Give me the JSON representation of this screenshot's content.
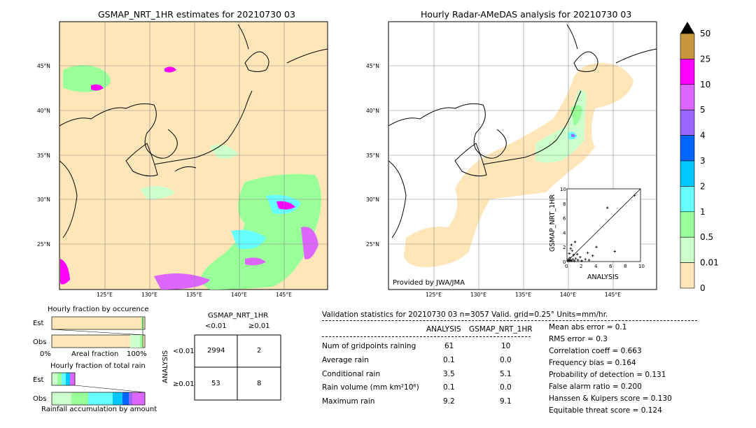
{
  "left_map": {
    "title": "GSMAP_NRT_1HR estimates for 20210730 03",
    "lat_labels": [
      "45°N",
      "40°N",
      "35°N",
      "30°N",
      "25°N"
    ],
    "lon_labels": [
      "125°E",
      "130°E",
      "135°E",
      "140°E",
      "145°E"
    ]
  },
  "right_map": {
    "title": "Hourly Radar-AMeDAS analysis for 20210730 03",
    "lat_labels": [
      "45°N",
      "40°N",
      "35°N",
      "30°N",
      "25°N"
    ],
    "lon_labels": [
      "125°E",
      "130°E",
      "135°E",
      "140°E",
      "145°E"
    ],
    "credit": "Provided by JWA/JMA"
  },
  "colorbar": {
    "labels": [
      "50",
      "25",
      "10",
      "5",
      "4",
      "3",
      "2",
      "1",
      "0.5",
      "0.01",
      "0"
    ],
    "colors": [
      "#c8963c",
      "#ff00ff",
      "#dd66ff",
      "#9966ff",
      "#0066ff",
      "#00c8ff",
      "#66ffff",
      "#99ff99",
      "#ccffcc",
      "#ffe6b8"
    ]
  },
  "fraction_occurrence": {
    "title": "Hourly fraction by occurence",
    "row_labels": [
      "Est",
      "Obs"
    ],
    "axis_left": "0%",
    "axis_mid": "Areal fraction",
    "axis_right": "100%"
  },
  "fraction_total": {
    "title": "Hourly fraction of total rain",
    "row_labels": [
      "Est",
      "Obs"
    ],
    "footer": "Rainfall accumulation by amount"
  },
  "contingency": {
    "title": "GSMAP_NRT_1HR",
    "col_labels": [
      "<0.01",
      "≥0.01"
    ],
    "row_labels": [
      "<0.01",
      "≥0.01"
    ],
    "side_label": "ANALYSIS",
    "cells": [
      [
        "2994",
        "2"
      ],
      [
        "53",
        "8"
      ]
    ]
  },
  "validation": {
    "header": "Validation statistics for 20210730 03  n=3057 Valid. grid=0.25° Units=mm/hr.",
    "col_analysis": "ANALYSIS",
    "col_gsmap": "GSMAP_NRT_1HR",
    "rows": [
      {
        "label": "Num of gridpoints raining",
        "analysis": "61",
        "gsmap": "10"
      },
      {
        "label": "Average rain",
        "analysis": "0.1",
        "gsmap": "0.0"
      },
      {
        "label": "Conditional rain",
        "analysis": "3.5",
        "gsmap": "5.1"
      },
      {
        "label": "Rain volume (mm km²10⁶)",
        "analysis": "0.1",
        "gsmap": "0.0"
      },
      {
        "label": "Maximum rain",
        "analysis": "9.2",
        "gsmap": "9.1"
      }
    ],
    "scores": [
      "Mean abs error =    0.1",
      "RMS error =    0.3",
      "Correlation coeff =  0.663",
      "Frequency bias =  0.164",
      "Probability of detection =  0.131",
      "False alarm ratio =  0.200",
      "Hanssen & Kuipers score =  0.130",
      "Equitable threat score =  0.124"
    ]
  },
  "chart_data": {
    "type": "scatter",
    "xlabel": "ANALYSIS",
    "ylabel": "GSMAP_NRT_1HR",
    "xlim": [
      0,
      10
    ],
    "ylim": [
      0,
      10
    ],
    "ticks": [
      "0",
      "2",
      "4",
      "6",
      "8",
      "10"
    ],
    "points": [
      {
        "x": 0.1,
        "y": 0.1
      },
      {
        "x": 0.2,
        "y": 0.3
      },
      {
        "x": 0.3,
        "y": 0.1
      },
      {
        "x": 0.4,
        "y": 0.5
      },
      {
        "x": 0.5,
        "y": 0.2
      },
      {
        "x": 0.6,
        "y": 0.1
      },
      {
        "x": 0.8,
        "y": 0.3
      },
      {
        "x": 1.0,
        "y": 0.1
      },
      {
        "x": 1.2,
        "y": 0.4
      },
      {
        "x": 1.5,
        "y": 0.2
      },
      {
        "x": 2.0,
        "y": 0.1
      },
      {
        "x": 0.3,
        "y": 1.1
      },
      {
        "x": 0.5,
        "y": 1.8
      },
      {
        "x": 0.7,
        "y": 1.5
      },
      {
        "x": 0.6,
        "y": 2.3
      },
      {
        "x": 1.4,
        "y": 1.0
      },
      {
        "x": 1.8,
        "y": 0.6
      },
      {
        "x": 2.5,
        "y": 0.3
      },
      {
        "x": 3.0,
        "y": 0.2
      },
      {
        "x": 3.5,
        "y": 0.8
      },
      {
        "x": 4.0,
        "y": 2.0
      },
      {
        "x": 2.8,
        "y": 1.2
      },
      {
        "x": 6.5,
        "y": 1.4
      },
      {
        "x": 5.5,
        "y": 7.4
      },
      {
        "x": 9.2,
        "y": 9.1
      },
      {
        "x": 1.1,
        "y": 2.7
      },
      {
        "x": 0.9,
        "y": 0.9
      }
    ]
  }
}
